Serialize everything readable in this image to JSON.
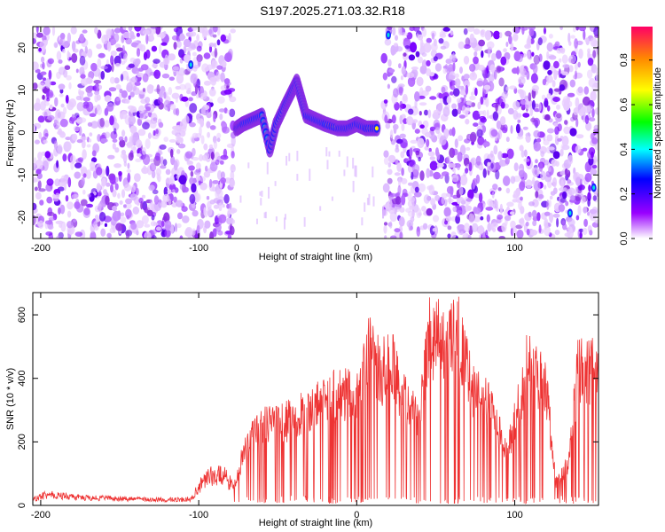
{
  "title": "S197.2025.271.03.32.R18",
  "chart_data": [
    {
      "type": "heatmap",
      "name": "spectrogram",
      "xlabel": "Height of straight line (km)",
      "ylabel": "Frequency (Hz)",
      "xlim": [
        -205,
        153
      ],
      "ylim": [
        -25,
        25
      ],
      "xticks": [
        -200,
        -100,
        0,
        100
      ],
      "xtick_labels": [
        "-200",
        "-100",
        "0",
        "100"
      ],
      "yticks": [
        -20,
        -10,
        0,
        10,
        20
      ],
      "ytick_labels": [
        "-20",
        "-10",
        "0",
        "10",
        "20"
      ],
      "blank_region_x": [
        -78,
        17
      ],
      "ridge_track": [
        {
          "x": -76,
          "y": 1
        },
        {
          "x": -72,
          "y": 2
        },
        {
          "x": -66,
          "y": 3
        },
        {
          "x": -60,
          "y": 4
        },
        {
          "x": -55,
          "y": -4
        },
        {
          "x": -51,
          "y": 2
        },
        {
          "x": -46,
          "y": 6
        },
        {
          "x": -42,
          "y": 9
        },
        {
          "x": -38,
          "y": 12
        },
        {
          "x": -35,
          "y": 8
        },
        {
          "x": -32,
          "y": 4
        },
        {
          "x": -26,
          "y": 3
        },
        {
          "x": -20,
          "y": 2
        },
        {
          "x": -12,
          "y": 1
        },
        {
          "x": -6,
          "y": 1
        },
        {
          "x": 0,
          "y": 2
        },
        {
          "x": 6,
          "y": 1
        },
        {
          "x": 14,
          "y": 1
        }
      ],
      "colorbar": {
        "label": "Normalized spectral amplitude",
        "range": [
          0,
          0.95
        ],
        "ticks": [
          0.0,
          0.2,
          0.4,
          0.6,
          0.8
        ],
        "tick_labels": [
          "0.0",
          "0.2",
          "0.4",
          "0.6",
          "0.8"
        ],
        "colors": [
          "#ffffff",
          "#9900ff",
          "#0000ff",
          "#00ffff",
          "#00ff00",
          "#ffff00",
          "#ff8800",
          "#ff0066"
        ]
      }
    },
    {
      "type": "line",
      "name": "snr",
      "xlabel": "Height of straight line (km)",
      "ylabel": "SNR (10 * v/v)",
      "xlim": [
        -205,
        153
      ],
      "ylim": [
        0,
        670
      ],
      "xticks": [
        -200,
        -100,
        0,
        100
      ],
      "xtick_labels": [
        "-200",
        "-100",
        "0",
        "100"
      ],
      "yticks": [
        0,
        200,
        400,
        600
      ],
      "ytick_labels": [
        "0",
        "200",
        "400",
        "600"
      ],
      "line_color": "#ee3333",
      "series_envelope": [
        {
          "x": -205,
          "y": 20
        },
        {
          "x": -195,
          "y": 40
        },
        {
          "x": -180,
          "y": 28
        },
        {
          "x": -160,
          "y": 25
        },
        {
          "x": -140,
          "y": 22
        },
        {
          "x": -120,
          "y": 20
        },
        {
          "x": -105,
          "y": 22
        },
        {
          "x": -95,
          "y": 100
        },
        {
          "x": -85,
          "y": 110
        },
        {
          "x": -78,
          "y": 60
        },
        {
          "x": -70,
          "y": 220
        },
        {
          "x": -60,
          "y": 280
        },
        {
          "x": -50,
          "y": 300
        },
        {
          "x": -40,
          "y": 310
        },
        {
          "x": -30,
          "y": 340
        },
        {
          "x": -20,
          "y": 380
        },
        {
          "x": -10,
          "y": 400
        },
        {
          "x": 0,
          "y": 380
        },
        {
          "x": 8,
          "y": 560
        },
        {
          "x": 15,
          "y": 470
        },
        {
          "x": 22,
          "y": 520
        },
        {
          "x": 30,
          "y": 380
        },
        {
          "x": 40,
          "y": 300
        },
        {
          "x": 45,
          "y": 600
        },
        {
          "x": 55,
          "y": 610
        },
        {
          "x": 65,
          "y": 600
        },
        {
          "x": 72,
          "y": 430
        },
        {
          "x": 80,
          "y": 400
        },
        {
          "x": 88,
          "y": 300
        },
        {
          "x": 95,
          "y": 180
        },
        {
          "x": 100,
          "y": 300
        },
        {
          "x": 108,
          "y": 510
        },
        {
          "x": 113,
          "y": 470
        },
        {
          "x": 120,
          "y": 420
        },
        {
          "x": 126,
          "y": 80
        },
        {
          "x": 134,
          "y": 150
        },
        {
          "x": 140,
          "y": 480
        },
        {
          "x": 153,
          "y": 480
        }
      ]
    }
  ]
}
